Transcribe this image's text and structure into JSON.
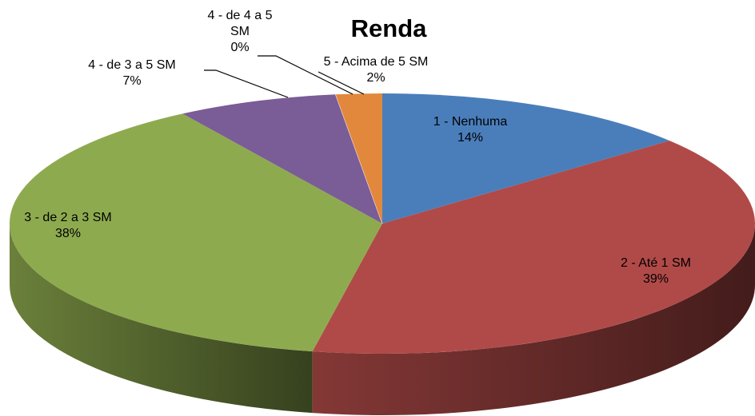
{
  "chart_data": {
    "type": "pie",
    "title": "Renda",
    "categories": [
      "1 - Nenhuma",
      "2 - Até 1 SM",
      "3 - de 2 a 3 SM",
      "4 - de 3 a 5 SM",
      "4 - de 4 a 5 SM",
      "5 - Acima de 5 SM"
    ],
    "values": [
      14,
      39,
      38,
      7,
      0,
      2
    ],
    "value_labels": [
      "14%",
      "39%",
      "38%",
      "7%",
      "0%",
      "2%"
    ],
    "colors": [
      "#4a7ebb",
      "#b04a48",
      "#8eaa4f",
      "#7a5c96",
      "#9e9e9e",
      "#e2883c"
    ]
  }
}
